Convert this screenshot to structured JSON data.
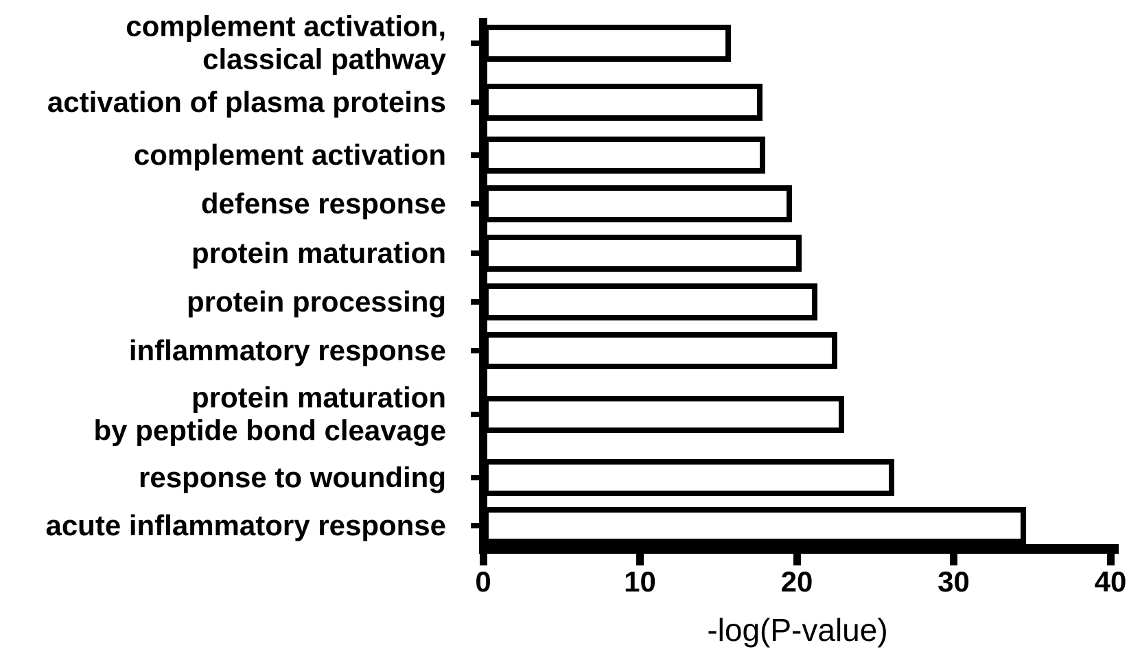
{
  "chart_data": {
    "type": "bar",
    "orientation": "horizontal",
    "title": "",
    "xlabel": "-log(P-value)",
    "ylabel": "",
    "xlim": [
      0,
      40
    ],
    "xticks": [
      0,
      10,
      20,
      30,
      40
    ],
    "grid": false,
    "legend": "none",
    "bar_fill": "#ffffff",
    "bar_border": "#000000",
    "categories": [
      "complement activation,\nclassical pathway",
      "activation of plasma proteins",
      "complement activation",
      "defense response",
      "protein maturation",
      "protein processing",
      "inflammatory response",
      "protein maturation\nby peptide bond cleavage",
      "response to wounding",
      "acute inflammatory response"
    ],
    "values": [
      15.8,
      17.8,
      18.0,
      19.7,
      20.3,
      21.3,
      22.6,
      23.0,
      26.2,
      34.6
    ]
  },
  "colors": {
    "foreground": "#000000",
    "background": "#ffffff"
  }
}
